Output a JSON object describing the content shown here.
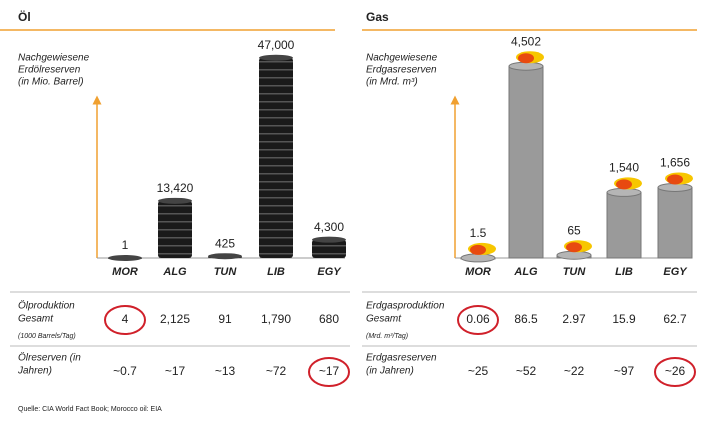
{
  "chart_data": [
    {
      "type": "bar",
      "title": "Öl",
      "y_label": [
        "Nachgewiesene",
        "Erdölreserven",
        "(in Mio. Barrel)"
      ],
      "categories": [
        "MOR",
        "ALG",
        "TUN",
        "LIB",
        "EGY"
      ],
      "values": [
        1,
        13420,
        425,
        47000,
        4300
      ],
      "value_labels": [
        "1",
        "13,420",
        "425",
        "47,000",
        "4,300"
      ],
      "ylim": [
        0,
        50000
      ],
      "color": "#1a1a1a"
    },
    {
      "type": "cylinder",
      "title": "Gas",
      "y_label": [
        "Nachgewiesene",
        "Erdgasreserven",
        "(in Mrd. m³)"
      ],
      "categories": [
        "MOR",
        "ALG",
        "TUN",
        "LIB",
        "EGY"
      ],
      "values": [
        1.5,
        4502,
        65,
        1540,
        1656
      ],
      "value_labels": [
        "1.5",
        "4,502",
        "65",
        "1,540",
        "1,656"
      ],
      "ylim": [
        0,
        5000
      ],
      "color": "#9a9a9a"
    }
  ],
  "tables": [
    {
      "rows": [
        {
          "label": [
            "Ölproduktion",
            "Gesamt"
          ],
          "unit": "(1000 Barrels/Tag)",
          "cells": [
            "4",
            "2,125",
            "91",
            "1,790",
            "680"
          ]
        },
        {
          "label": [
            "Ölreserven (in",
            "Jahren)"
          ],
          "cells": [
            "~0.7",
            "~17",
            "~13",
            "~72",
            "~17"
          ]
        }
      ]
    },
    {
      "rows": [
        {
          "label": [
            "Erdgasproduktion",
            "Gesamt"
          ],
          "unit": "(Mrd. m³/Tag)",
          "cells": [
            "0.06",
            "86.5",
            "2.97",
            "15.9",
            "62.7"
          ]
        },
        {
          "label": [
            "Erdgasreserven",
            "(in Jahren)"
          ],
          "cells": [
            "~25",
            "~52",
            "~22",
            "~97",
            "~26"
          ]
        }
      ]
    }
  ],
  "source": "Quelle: CIA World Fact Book; Morocco oil: EIA"
}
